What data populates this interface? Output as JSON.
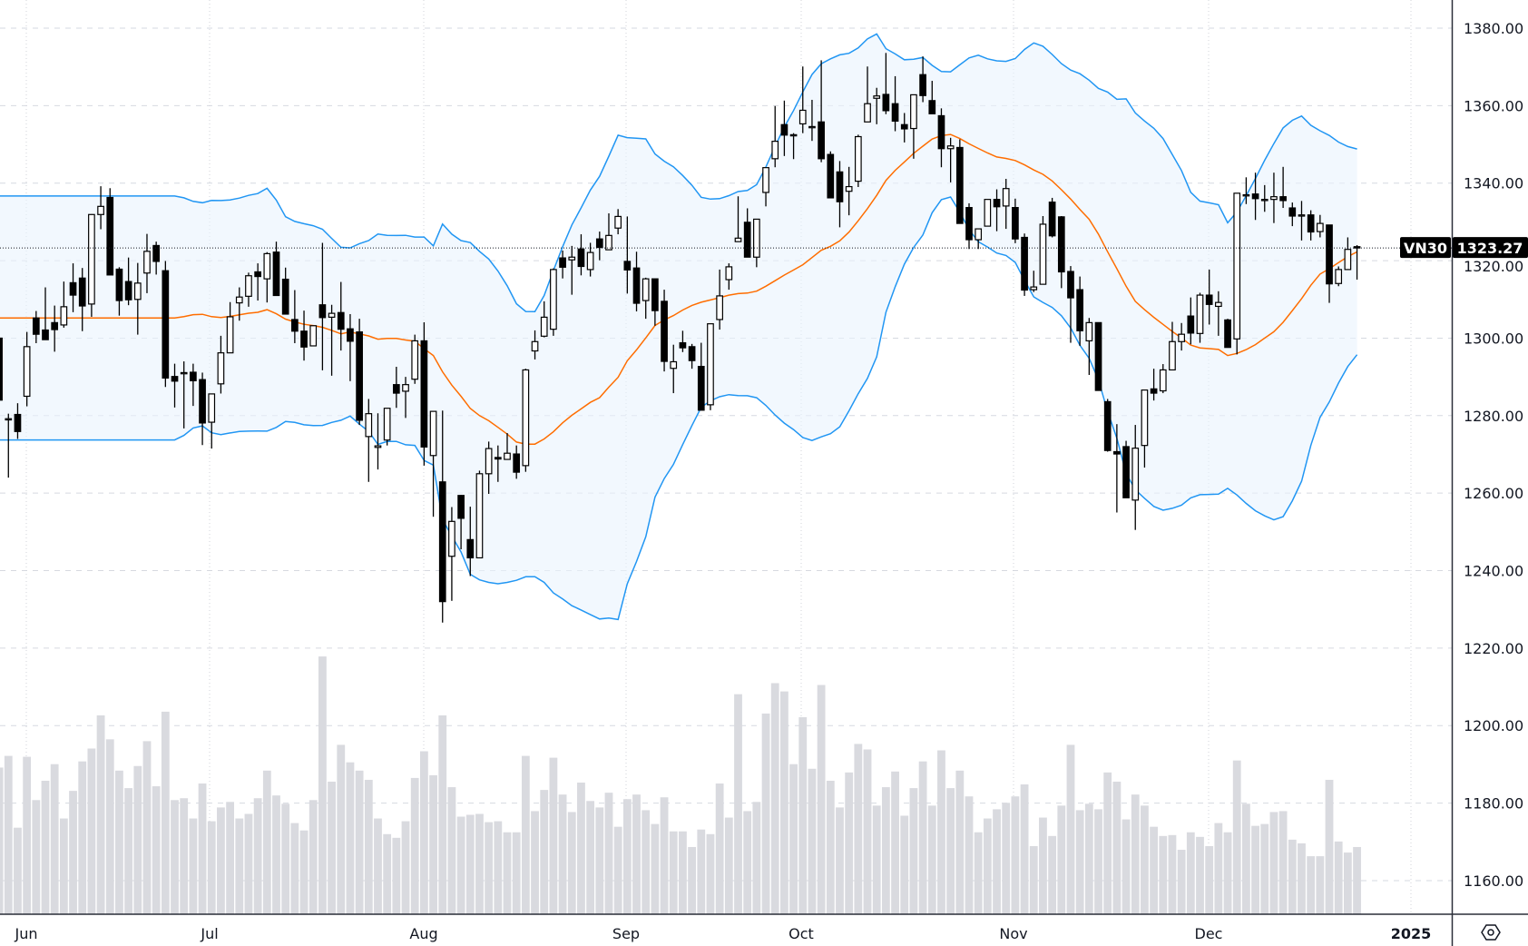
{
  "chart_data": {
    "type": "candlestick",
    "symbol": "VN30",
    "last_price": "1323.27",
    "title": "",
    "xlabel": "",
    "ylabel": "",
    "ylim": [
      1150,
      1387
    ],
    "y_ticks": [
      "1380.00",
      "1360.00",
      "1340.00",
      "1320.00",
      "1300.00",
      "1280.00",
      "1260.00",
      "1240.00",
      "1220.00",
      "1200.00",
      "1180.00",
      "1160.00"
    ],
    "y_tick_values": [
      1380,
      1360,
      1340,
      1320,
      1300,
      1280,
      1260,
      1240,
      1220,
      1200,
      1180,
      1160
    ],
    "x_ticks": [
      "Jun",
      "Jul",
      "Aug",
      "Sep",
      "Oct",
      "Nov",
      "Dec",
      "2025"
    ],
    "grid": true,
    "indicators": {
      "bollinger": {
        "period": 20,
        "stddev": 2,
        "upper_color": "#2196f3",
        "lower_color": "#2196f3",
        "basis_color": "#ff6d00",
        "fill_color": "#eaf4fd"
      }
    },
    "colors": {
      "up_body": "#ffffff",
      "down_body": "#000000",
      "wick": "#000000",
      "volume": "#d9dadf",
      "axis": "#2a2e39",
      "grid": "#d6d9e0"
    },
    "ohlc": [
      [
        1300,
        1305,
        1282,
        1284
      ],
      [
        1279.2,
        1280.5,
        1264,
        1279.2
      ],
      [
        1280.3,
        1283.2,
        1274,
        1275.9
      ],
      [
        1285.0,
        1301.6,
        1282.4,
        1297.8
      ],
      [
        1305.2,
        1307.0,
        1298.7,
        1301.0
      ],
      [
        1302.1,
        1313.1,
        1299.6,
        1299.6
      ],
      [
        1304.0,
        1308.4,
        1296.5,
        1302.2
      ],
      [
        1303.4,
        1314.6,
        1302.7,
        1308.1
      ],
      [
        1314.3,
        1319.3,
        1306.7,
        1311.1
      ],
      [
        1315.5,
        1318.1,
        1301.8,
        1308.3
      ],
      [
        1308.8,
        1332.0,
        1305.5,
        1331.9
      ],
      [
        1331.9,
        1339.2,
        1328.1,
        1334.0
      ],
      [
        1336.3,
        1338.7,
        1316.3,
        1316.3
      ],
      [
        1317.8,
        1318.3,
        1305.8,
        1309.7
      ],
      [
        1314.6,
        1320.8,
        1308.5,
        1309.9
      ],
      [
        1310.0,
        1319.4,
        1300.9,
        1314.2
      ],
      [
        1316.8,
        1326.9,
        1311.6,
        1322.4
      ],
      [
        1323.9,
        1324.9,
        1316.4,
        1319.8
      ],
      [
        1317.4,
        1319.9,
        1287.4,
        1289.7
      ],
      [
        1290.1,
        1293.4,
        1282.1,
        1288.9
      ],
      [
        1291.1,
        1294.0,
        1276.7,
        1291.1
      ],
      [
        1291.2,
        1293.4,
        1282.5,
        1289.0
      ],
      [
        1289.3,
        1291.1,
        1272.4,
        1278.1
      ],
      [
        1278.3,
        1285.6,
        1271.5,
        1285.6
      ],
      [
        1288.2,
        1300.6,
        1285.7,
        1296.2
      ],
      [
        1296.2,
        1309.3,
        1296.2,
        1305.5
      ],
      [
        1309.1,
        1313.1,
        1304.5,
        1310.6
      ],
      [
        1310.8,
        1316.9,
        1308.1,
        1316.1
      ],
      [
        1317.1,
        1319.3,
        1309.7,
        1315.9
      ],
      [
        1315.3,
        1322.2,
        1309.2,
        1321.8
      ],
      [
        1322.2,
        1324.9,
        1311.0,
        1311.0
      ],
      [
        1315.2,
        1318.2,
        1306.2,
        1306.2
      ],
      [
        1304.8,
        1312.4,
        1298.7,
        1301.8
      ],
      [
        1301.8,
        1307.1,
        1294.2,
        1297.7
      ],
      [
        1298.0,
        1303.2,
        1298.0,
        1303.2
      ],
      [
        1308.6,
        1324.6,
        1291.7,
        1305.3
      ],
      [
        1305.4,
        1308.6,
        1290.3,
        1306.4
      ],
      [
        1306.6,
        1314.5,
        1296.8,
        1302.3
      ],
      [
        1302.4,
        1306.2,
        1288.9,
        1299.2
      ],
      [
        1301.6,
        1305.0,
        1277.6,
        1278.8
      ],
      [
        1274.6,
        1284.3,
        1262.9,
        1280.5
      ],
      [
        1271.8,
        1280.6,
        1266.1,
        1272.2
      ],
      [
        1273.7,
        1281.9,
        1272.3,
        1281.9
      ],
      [
        1288.0,
        1292.6,
        1282.0,
        1285.8
      ],
      [
        1286.3,
        1290.0,
        1279.4,
        1288.0
      ],
      [
        1289.4,
        1300.9,
        1288.2,
        1299.3
      ],
      [
        1299.3,
        1304.1,
        1267.1,
        1271.9
      ],
      [
        1269.7,
        1281.1,
        1253.9,
        1281.1
      ],
      [
        1262.9,
        1281.3,
        1226.6,
        1232.0
      ],
      [
        1243.7,
        1256.4,
        1232.2,
        1252.7
      ],
      [
        1259.4,
        1259.5,
        1245.5,
        1253.5
      ],
      [
        1248.0,
        1256.5,
        1238.6,
        1243.3
      ],
      [
        1243.3,
        1265.8,
        1243.3,
        1265.0
      ],
      [
        1265.0,
        1273.3,
        1259.8,
        1271.5
      ],
      [
        1269.2,
        1272.3,
        1262.9,
        1268.8
      ],
      [
        1268.7,
        1275.5,
        1268.7,
        1270.3
      ],
      [
        1270.1,
        1272.3,
        1263.7,
        1265.4
      ],
      [
        1267.1,
        1292.1,
        1265.5,
        1291.8
      ],
      [
        1296.7,
        1302.0,
        1294.5,
        1299.1
      ],
      [
        1300.5,
        1309.5,
        1300.2,
        1305.4
      ],
      [
        1302.3,
        1318.0,
        1300.6,
        1317.7
      ],
      [
        1320.7,
        1322.6,
        1315.4,
        1318.3
      ],
      [
        1320.2,
        1323.8,
        1311.2,
        1320.9
      ],
      [
        1323.0,
        1326.8,
        1316.2,
        1318.5
      ],
      [
        1317.7,
        1324.6,
        1315.9,
        1322.1
      ],
      [
        1325.6,
        1327.5,
        1320.1,
        1323.4
      ],
      [
        1322.8,
        1332.2,
        1322.8,
        1326.5
      ],
      [
        1328.4,
        1333.3,
        1326.8,
        1331.4
      ],
      [
        1319.8,
        1331.4,
        1311.5,
        1317.6
      ],
      [
        1318.1,
        1322.3,
        1306.9,
        1309.0
      ],
      [
        1309.7,
        1315.6,
        1305.0,
        1315.3
      ],
      [
        1315.3,
        1315.3,
        1303.2,
        1307.1
      ],
      [
        1309.5,
        1312.5,
        1291.4,
        1294.0
      ],
      [
        1292.2,
        1298.3,
        1285.8,
        1293.9
      ],
      [
        1298.8,
        1301.9,
        1296.4,
        1297.5
      ],
      [
        1297.8,
        1298.5,
        1292.1,
        1294.2
      ],
      [
        1292.7,
        1298.8,
        1281.4,
        1281.4
      ],
      [
        1282.8,
        1303.7,
        1281.4,
        1303.7
      ],
      [
        1304.8,
        1317.7,
        1302.2,
        1310.9
      ],
      [
        1315.1,
        1319.3,
        1312.5,
        1318.4
      ],
      [
        1324.9,
        1336.6,
        1324.9,
        1325.8
      ],
      [
        1329.9,
        1333.5,
        1320.9,
        1320.9
      ],
      [
        1320.9,
        1330.7,
        1318.3,
        1330.7
      ],
      [
        1337.6,
        1344.0,
        1334.0,
        1344.0
      ],
      [
        1346.3,
        1359.9,
        1344.1,
        1350.8
      ],
      [
        1355.1,
        1361.3,
        1347.0,
        1352.4
      ],
      [
        1352.5,
        1352.9,
        1346.2,
        1352.5
      ],
      [
        1355.3,
        1370.1,
        1352.9,
        1358.8
      ],
      [
        1354.6,
        1361.5,
        1350.9,
        1354.6
      ],
      [
        1355.8,
        1371.7,
        1345.4,
        1346.3
      ],
      [
        1347.4,
        1348.2,
        1336.2,
        1336.2
      ],
      [
        1342.9,
        1345.7,
        1328.6,
        1335.2
      ],
      [
        1337.9,
        1344.2,
        1331.7,
        1339.1
      ],
      [
        1340.5,
        1352.5,
        1339.0,
        1352.0
      ],
      [
        1355.8,
        1370.1,
        1355.8,
        1360.5
      ],
      [
        1361.9,
        1364.6,
        1355.2,
        1362.5
      ],
      [
        1362.9,
        1373.6,
        1357.8,
        1358.7
      ],
      [
        1360.5,
        1367.6,
        1353.4,
        1356.0
      ],
      [
        1355.1,
        1358.1,
        1350.5,
        1354.0
      ],
      [
        1354.1,
        1362.8,
        1346.3,
        1362.8
      ],
      [
        1368.0,
        1372.7,
        1360.9,
        1362.6
      ],
      [
        1361.3,
        1366.4,
        1357.9,
        1357.9
      ],
      [
        1357.4,
        1359.3,
        1344.1,
        1348.9
      ],
      [
        1348.9,
        1351.7,
        1340.2,
        1349.6
      ],
      [
        1349.2,
        1351.3,
        1329.6,
        1329.6
      ],
      [
        1333.7,
        1334.8,
        1323.0,
        1325.4
      ],
      [
        1325.4,
        1328.2,
        1323.0,
        1328.2
      ],
      [
        1328.9,
        1335.8,
        1328.9,
        1335.8
      ],
      [
        1335.8,
        1338.4,
        1327.6,
        1333.9
      ],
      [
        1334.1,
        1341.1,
        1328.2,
        1338.6
      ],
      [
        1333.7,
        1336.0,
        1324.5,
        1325.6
      ],
      [
        1326.0,
        1327.0,
        1310.9,
        1312.4
      ],
      [
        1312.5,
        1317.4,
        1311.9,
        1313.2
      ],
      [
        1313.9,
        1331.5,
        1313.9,
        1329.4
      ],
      [
        1335.1,
        1336.2,
        1326.0,
        1326.4
      ],
      [
        1331.3,
        1331.5,
        1312.9,
        1317.1
      ],
      [
        1317.2,
        1318.6,
        1298.8,
        1310.4
      ],
      [
        1312.5,
        1315.9,
        1298.0,
        1301.9
      ],
      [
        1299.3,
        1305.2,
        1290.5,
        1304.0
      ],
      [
        1304.0,
        1304.0,
        1286.5,
        1286.5
      ],
      [
        1283.6,
        1284.3,
        1270.7,
        1271.0
      ],
      [
        1270.7,
        1277.8,
        1255.0,
        1270.1
      ],
      [
        1272.0,
        1273.5,
        1258.8,
        1258.8
      ],
      [
        1258.2,
        1277.6,
        1250.5,
        1271.6
      ],
      [
        1272.3,
        1286.6,
        1266.6,
        1286.6
      ],
      [
        1286.9,
        1292.1,
        1283.9,
        1285.8
      ],
      [
        1286.4,
        1293.3,
        1285.8,
        1291.8
      ],
      [
        1291.8,
        1304.2,
        1291.8,
        1299.1
      ],
      [
        1299.1,
        1303.9,
        1296.8,
        1301.0
      ],
      [
        1305.7,
        1310.5,
        1298.4,
        1301.3
      ],
      [
        1301.2,
        1311.7,
        1298.8,
        1311.1
      ],
      [
        1311.1,
        1317.7,
        1303.5,
        1308.7
      ],
      [
        1308.2,
        1312.1,
        1300.6,
        1309.2
      ],
      [
        1304.7,
        1305.0,
        1297.6,
        1297.6
      ],
      [
        1299.8,
        1337.4,
        1295.8,
        1337.4
      ],
      [
        1337.0,
        1341.5,
        1334.6,
        1337.0
      ],
      [
        1337.2,
        1342.7,
        1330.5,
        1336.0
      ],
      [
        1335.8,
        1339.5,
        1332.6,
        1335.8
      ],
      [
        1335.8,
        1342.7,
        1329.7,
        1336.5
      ],
      [
        1336.5,
        1344.2,
        1333.6,
        1335.5
      ],
      [
        1333.6,
        1335.0,
        1328.9,
        1331.5
      ],
      [
        1331.8,
        1335.4,
        1325.2,
        1331.8
      ],
      [
        1331.8,
        1333.0,
        1325.2,
        1327.4
      ],
      [
        1327.5,
        1331.8,
        1326.0,
        1329.6
      ],
      [
        1329.2,
        1329.2,
        1309.1,
        1314.0
      ],
      [
        1314.1,
        1318.5,
        1313.4,
        1317.7
      ],
      [
        1317.7,
        1326.0,
        1317.7,
        1322.9
      ],
      [
        1323.6,
        1324.0,
        1315.1,
        1323.27
      ]
    ],
    "volume_units": "relative",
    "volume": [
      478,
      516,
      282,
      513,
      372,
      435,
      489,
      312,
      402,
      498,
      540,
      648,
      570,
      468,
      411,
      483,
      564,
      417,
      660,
      372,
      378,
      312,
      426,
      303,
      348,
      366,
      312,
      327,
      378,
      468,
      387,
      360,
      297,
      273,
      372,
      840,
      432,
      552,
      495,
      468,
      438,
      312,
      261,
      249,
      303,
      444,
      531,
      453,
      648,
      414,
      318,
      324,
      327,
      300,
      303,
      267,
      267,
      516,
      336,
      405,
      510,
      390,
      333,
      429,
      369,
      348,
      396,
      285,
      375,
      390,
      339,
      294,
      381,
      270,
      270,
      219,
      276,
      261,
      426,
      315,
      717,
      336,
      366,
      654,
      753,
      726,
      489,
      642,
      474,
      747,
      435,
      348,
      462,
      555,
      537,
      354,
      414,
      465,
      321,
      411,
      498,
      354,
      534,
      411,
      468,
      384,
      267,
      312,
      342,
      363,
      384,
      423,
      222,
      315,
      255,
      354,
      552,
      339,
      360,
      342,
      462,
      432,
      309,
      390,
      354,
      285,
      255,
      258,
      210,
      267,
      252,
      222,
      297,
      267,
      501,
      360,
      288,
      294,
      333,
      336,
      243,
      231,
      189,
      189,
      438,
      237,
      201,
      219
    ]
  }
}
